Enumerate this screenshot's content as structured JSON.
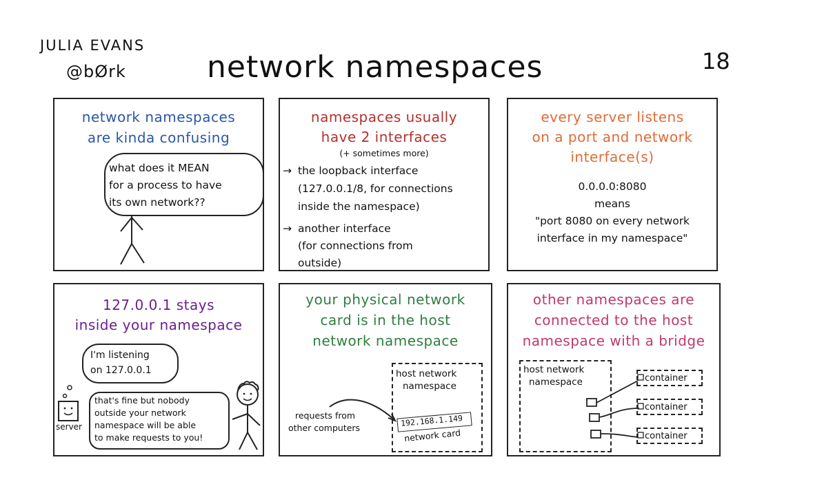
{
  "header": {
    "author_name": "JULIA EVANS",
    "author_handle": "@bØrk",
    "title": "network namespaces",
    "page_number": "18"
  },
  "panel1": {
    "title_line1": "network namespaces",
    "title_line2": "are kinda confusing",
    "thought_line1": "what does it MEAN",
    "thought_line2": "for a process to have",
    "thought_line3": "its own network??"
  },
  "panel2": {
    "title_line1": "namespaces usually",
    "title_line2": "have 2 interfaces",
    "subtitle": "(+ sometimes more)",
    "item1_line1": "the loopback interface",
    "item1_line2": "(127.0.0.1/8, for connections",
    "item1_line3": "inside the namespace)",
    "item2_line1": "another interface",
    "item2_line2": "(for connections from",
    "item2_line3": "outside)"
  },
  "panel3": {
    "title_line1": "every server listens",
    "title_line2": "on a port and network",
    "title_line3": "interface(s)",
    "line1": "0.0.0.0:8080",
    "line2": "means",
    "line3": "\"port 8080 on every network",
    "line4": "interface in my namespace\""
  },
  "panel4": {
    "title_line1": "127.0.0.1 stays",
    "title_line2": "inside your namespace",
    "thought_line1": "I'm listening",
    "thought_line2": "on 127.0.0.1",
    "server_label": "server",
    "speech_line1": "that's fine but nobody",
    "speech_line2": "outside your network",
    "speech_line3": "namespace will be able",
    "speech_line4": "to make requests to you!"
  },
  "panel5": {
    "title_line1": "your physical network",
    "title_line2": "card is in the host",
    "title_line3": "network namespace",
    "box_line1": "host network",
    "box_line2": "namespace",
    "ip": "192.168.1.149",
    "card_label": "network card",
    "requests_line1": "requests from",
    "requests_line2": "other computers"
  },
  "panel6": {
    "title_line1": "other namespaces are",
    "title_line2": "connected to the host",
    "title_line3": "namespace with a bridge",
    "box_line1": "host network",
    "box_line2": "namespace",
    "containers": [
      "container",
      "container",
      "container"
    ]
  }
}
